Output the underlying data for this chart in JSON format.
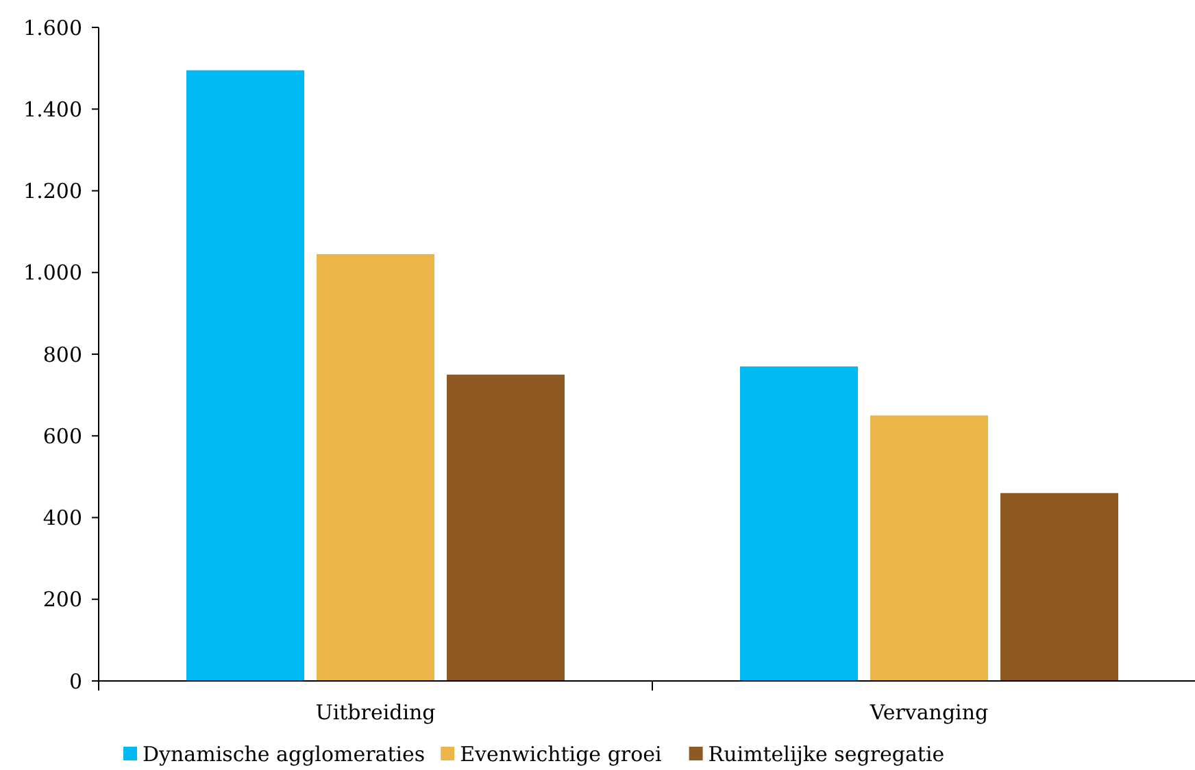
{
  "chart_data": {
    "type": "bar",
    "categories": [
      "Uitbreiding",
      "Vervanging"
    ],
    "series": [
      {
        "name": "Dynamische agglomeraties",
        "color": "#00b9f2",
        "values": [
          1495,
          770
        ]
      },
      {
        "name": "Evenwichtige groei",
        "color": "#ebb54a",
        "values": [
          1045,
          650
        ]
      },
      {
        "name": "Ruimtelijke segregatie",
        "color": "#8f5a21",
        "values": [
          750,
          460
        ]
      }
    ],
    "ylim": [
      0,
      1600
    ],
    "yticks": [
      {
        "value": 0,
        "label": "0"
      },
      {
        "value": 200,
        "label": "200"
      },
      {
        "value": 400,
        "label": "400"
      },
      {
        "value": 600,
        "label": "600"
      },
      {
        "value": 800,
        "label": "800"
      },
      {
        "value": 1000,
        "label": "1.000"
      },
      {
        "value": 1200,
        "label": "1.200"
      },
      {
        "value": 1400,
        "label": "1.400"
      },
      {
        "value": 1600,
        "label": "1.600"
      }
    ],
    "grid": false,
    "legend": "bottom"
  }
}
